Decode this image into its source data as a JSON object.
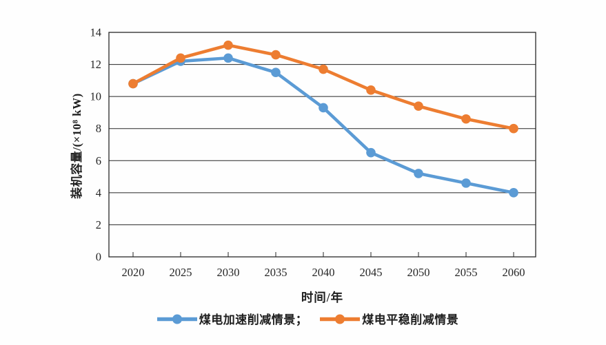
{
  "style": {
    "background": "#fefefe",
    "axis_color": "#262626",
    "text_color": "#262626"
  },
  "chart_data": {
    "type": "line",
    "xlabel": "时间/年",
    "ylabel": "装机容量/(×10⁸ kW)",
    "x": [
      2020,
      2025,
      2030,
      2035,
      2040,
      2045,
      2050,
      2055,
      2060
    ],
    "ylim": [
      0,
      14
    ],
    "ytick_step": 2,
    "grid": "horizontal",
    "legend_position": "bottom-center",
    "series": [
      {
        "name": "煤电加速削减情景",
        "legend_label": "煤电加速削减情景；",
        "color": "#5B9BD5",
        "values": [
          10.8,
          12.2,
          12.4,
          11.5,
          9.3,
          6.5,
          5.2,
          4.6,
          4.0
        ]
      },
      {
        "name": "煤电平稳削减情景",
        "legend_label": "煤电平稳削减情景",
        "color": "#ED7D31",
        "values": [
          10.8,
          12.4,
          13.2,
          12.6,
          11.7,
          10.4,
          9.4,
          8.6,
          8.0
        ]
      }
    ]
  }
}
